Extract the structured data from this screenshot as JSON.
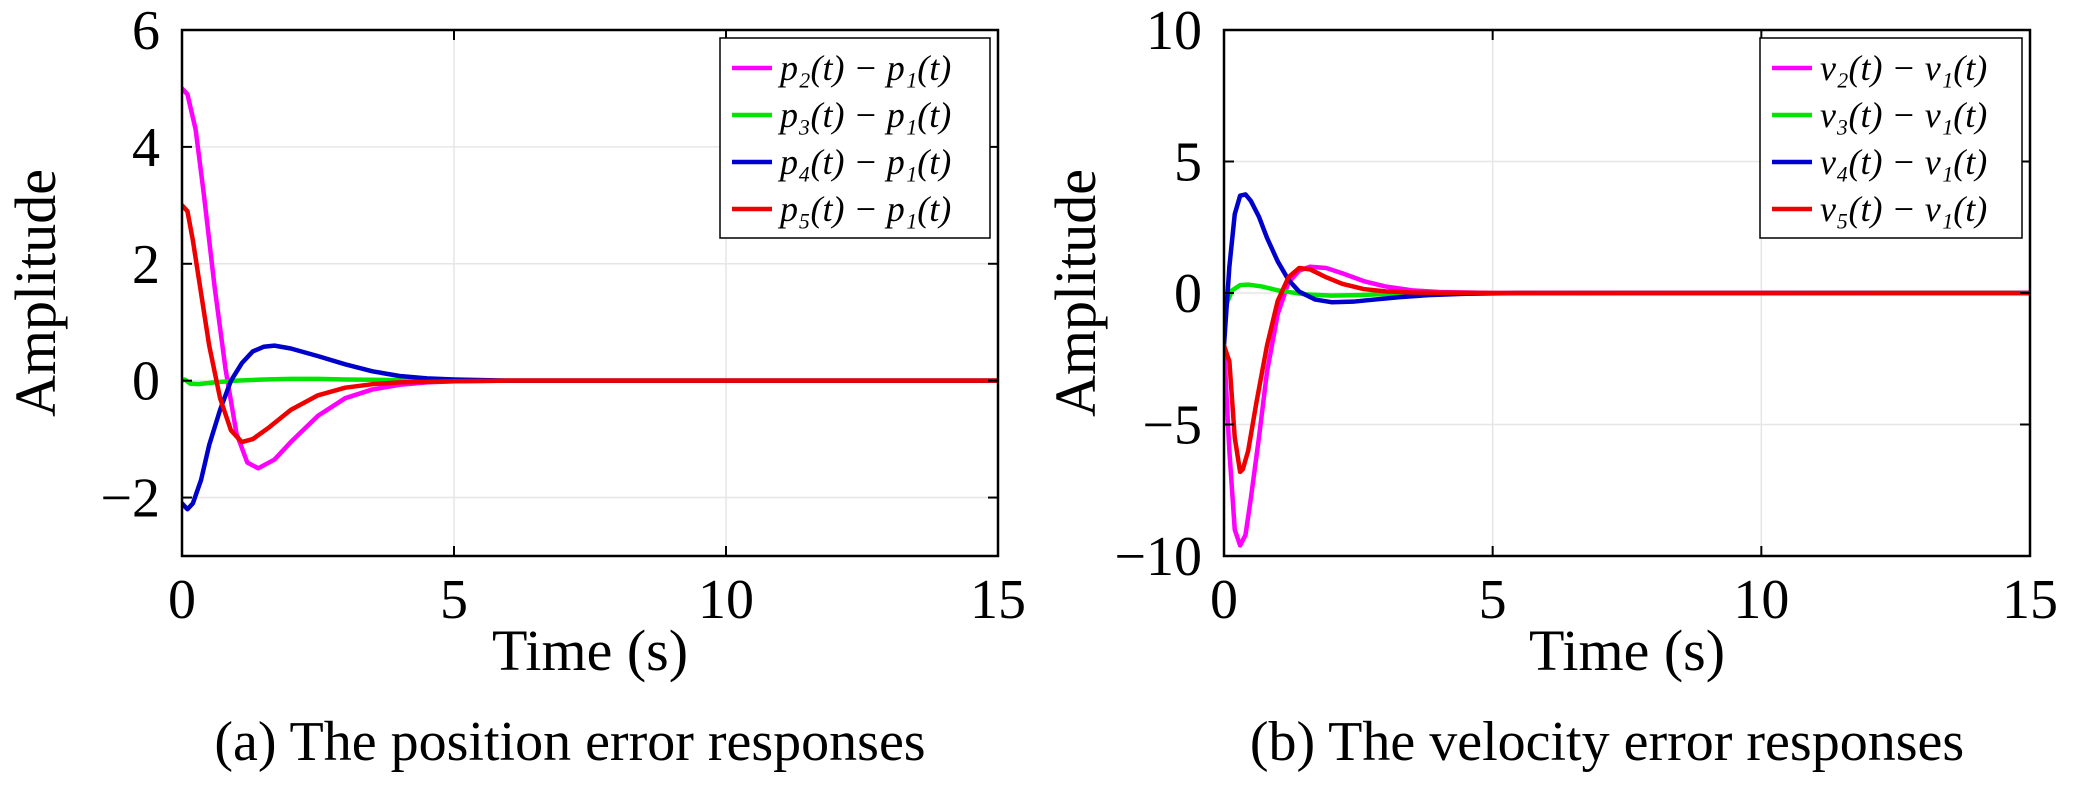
{
  "chart_data": [
    {
      "type": "line",
      "caption": "(a) The position error responses",
      "xlabel": "Time (s)",
      "ylabel": "Amplitude",
      "xlim": [
        0,
        15
      ],
      "ylim": [
        -3,
        6
      ],
      "xticks": [
        0,
        5,
        10,
        15
      ],
      "yticks": [
        -2,
        0,
        2,
        4,
        6
      ],
      "ytick_labels": [
        "−2",
        "0",
        "2",
        "4",
        "6"
      ],
      "grid": true,
      "legend_position": "top-right",
      "series": [
        {
          "name": "p₂(t) − p₁(t)",
          "color": "#ff00ff",
          "x": [
            0,
            0.1,
            0.25,
            0.4,
            0.6,
            0.8,
            1.0,
            1.2,
            1.4,
            1.7,
            2.0,
            2.5,
            3.0,
            3.5,
            4.0,
            4.5,
            5.0,
            6.0,
            7.0,
            15
          ],
          "y": [
            5.0,
            4.9,
            4.3,
            3.2,
            1.6,
            0.2,
            -0.9,
            -1.4,
            -1.5,
            -1.35,
            -1.05,
            -0.6,
            -0.3,
            -0.15,
            -0.07,
            -0.03,
            -0.01,
            0,
            0,
            0
          ]
        },
        {
          "name": "p₃(t) − p₁(t)",
          "color": "#00e600",
          "x": [
            0,
            0.05,
            0.15,
            0.3,
            0.6,
            1.0,
            1.5,
            2.0,
            2.5,
            3.0,
            4.0,
            5.0,
            15
          ],
          "y": [
            0,
            0.02,
            -0.05,
            -0.06,
            -0.03,
            0,
            0.02,
            0.03,
            0.03,
            0.02,
            0.01,
            0,
            0
          ]
        },
        {
          "name": "p₄(t) − p₁(t)",
          "color": "#0000cc",
          "x": [
            0,
            0.1,
            0.2,
            0.35,
            0.5,
            0.7,
            0.9,
            1.1,
            1.3,
            1.5,
            1.7,
            2.0,
            2.5,
            3.0,
            3.5,
            4.0,
            4.5,
            5.0,
            6.0,
            15
          ],
          "y": [
            -2.1,
            -2.2,
            -2.1,
            -1.7,
            -1.1,
            -0.5,
            0.0,
            0.3,
            0.5,
            0.58,
            0.6,
            0.55,
            0.42,
            0.28,
            0.16,
            0.08,
            0.04,
            0.02,
            0,
            0
          ]
        },
        {
          "name": "p₅(t) − p₁(t)",
          "color": "#ee0000",
          "x": [
            0,
            0.1,
            0.2,
            0.35,
            0.5,
            0.7,
            0.9,
            1.1,
            1.3,
            1.6,
            2.0,
            2.5,
            3.0,
            3.5,
            4.0,
            5.0,
            6.0,
            15
          ],
          "y": [
            3.0,
            2.9,
            2.4,
            1.5,
            0.6,
            -0.3,
            -0.85,
            -1.05,
            -1.0,
            -0.8,
            -0.5,
            -0.25,
            -0.12,
            -0.06,
            -0.03,
            -0.01,
            0,
            0
          ]
        }
      ]
    },
    {
      "type": "line",
      "caption": "(b) The velocity error responses",
      "xlabel": "Time (s)",
      "ylabel": "Amplitude",
      "xlim": [
        0,
        15
      ],
      "ylim": [
        -10,
        10
      ],
      "xticks": [
        0,
        5,
        10,
        15
      ],
      "yticks": [
        -10,
        -5,
        0,
        5,
        10
      ],
      "ytick_labels": [
        "−10",
        "−5",
        "0",
        "5",
        "10"
      ],
      "grid": true,
      "legend_position": "top-right",
      "series": [
        {
          "name": "v₂(t) − v₁(t)",
          "color": "#ff00ff",
          "x": [
            0,
            0.1,
            0.2,
            0.3,
            0.4,
            0.5,
            0.65,
            0.8,
            1.0,
            1.2,
            1.4,
            1.6,
            1.9,
            2.2,
            2.6,
            3.0,
            3.5,
            4.0,
            5.0,
            15
          ],
          "y": [
            -2.0,
            -6.0,
            -9.0,
            -9.6,
            -9.2,
            -7.8,
            -5.5,
            -3.0,
            -0.8,
            0.4,
            0.85,
            1.0,
            0.95,
            0.75,
            0.45,
            0.25,
            0.1,
            0.04,
            0,
            0
          ]
        },
        {
          "name": "v₃(t) − v₁(t)",
          "color": "#00e600",
          "x": [
            0,
            0.05,
            0.15,
            0.3,
            0.45,
            0.7,
            1.0,
            1.5,
            2.0,
            2.5,
            3.0,
            4.0,
            15
          ],
          "y": [
            -0.8,
            -0.4,
            0.1,
            0.3,
            0.32,
            0.25,
            0.1,
            -0.05,
            -0.1,
            -0.08,
            -0.04,
            -0.01,
            0
          ]
        },
        {
          "name": "v₄(t) − v₁(t)",
          "color": "#0000cc",
          "x": [
            0,
            0.1,
            0.2,
            0.3,
            0.4,
            0.5,
            0.65,
            0.8,
            1.0,
            1.2,
            1.4,
            1.7,
            2.0,
            2.4,
            2.8,
            3.2,
            3.8,
            4.5,
            5.5,
            15
          ],
          "y": [
            -2.0,
            1.0,
            3.0,
            3.7,
            3.75,
            3.5,
            2.9,
            2.1,
            1.2,
            0.5,
            0.05,
            -0.25,
            -0.35,
            -0.33,
            -0.25,
            -0.17,
            -0.08,
            -0.03,
            0,
            0
          ]
        },
        {
          "name": "v₅(t) − v₁(t)",
          "color": "#ee0000",
          "x": [
            0,
            0.1,
            0.2,
            0.3,
            0.35,
            0.45,
            0.6,
            0.8,
            1.0,
            1.2,
            1.4,
            1.6,
            1.9,
            2.2,
            2.6,
            3.0,
            3.5,
            4.0,
            5.0,
            15
          ],
          "y": [
            -2.0,
            -2.6,
            -5.5,
            -6.8,
            -6.7,
            -6.0,
            -4.2,
            -2.0,
            -0.3,
            0.6,
            0.95,
            0.9,
            0.6,
            0.35,
            0.15,
            0.06,
            0.02,
            0.01,
            0,
            0
          ]
        }
      ]
    }
  ]
}
